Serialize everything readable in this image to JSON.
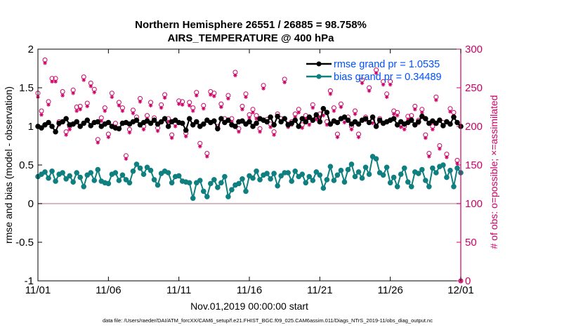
{
  "title_line1": "Northern Hemisphere 26551 / 26885 = 98.758%",
  "title_line2": "AIRS_TEMPERATURE @ 400 hPa",
  "footer": "data file: /Users/raeder/DAI/ATM_forcXX/CAM6_setup/f.e21.FHIST_BGC.f09_025.CAM6assim.011/Diags_NTrS_2019-11/obs_diag_output.nc",
  "colors": {
    "rmse": "#000000",
    "bias": "#0f7f7f",
    "obs": "#cc0066",
    "zero": "#c9a2a8",
    "legend_text": "#0050ff"
  },
  "chart_data": {
    "type": "line",
    "xlabel": "Nov.01,2019 00:00:00 start",
    "ylabel": "rmse and bias (model - observation)",
    "y2label": "# of obs: o=possible; ×=assimilated",
    "x_tick_labels": [
      "11/01",
      "11/06",
      "11/11",
      "11/16",
      "11/21",
      "11/26",
      "12/01"
    ],
    "x_tick_days": [
      0,
      5,
      10,
      15,
      20,
      25,
      30
    ],
    "xlim_days": [
      0,
      30
    ],
    "ylim": [
      -1,
      2
    ],
    "y_ticks": [
      -1,
      -0.5,
      0,
      0.5,
      1,
      1.5,
      2
    ],
    "y_tick_labels": [
      "-1",
      "-0.5",
      "0",
      "0.5",
      "1",
      "1.5",
      "2"
    ],
    "y2lim": [
      0,
      300
    ],
    "y2_ticks": [
      0,
      50,
      100,
      150,
      200,
      250,
      300
    ],
    "y2_tick_labels": [
      "0",
      "50",
      "100",
      "150",
      "200",
      "250",
      "300"
    ],
    "legend_position": "top-right",
    "series": [
      {
        "name": "rmse grand pr = 1.0535",
        "key": "rmse",
        "x_days": [
          0.0,
          0.25,
          0.5,
          0.75,
          1.0,
          1.25,
          1.5,
          1.75,
          2.0,
          2.25,
          2.5,
          2.75,
          3.0,
          3.25,
          3.5,
          3.75,
          4.0,
          4.25,
          4.5,
          4.75,
          5.0,
          5.25,
          5.5,
          5.75,
          6.0,
          6.25,
          6.5,
          6.75,
          7.0,
          7.25,
          7.5,
          7.75,
          8.0,
          8.25,
          8.5,
          8.75,
          9.0,
          9.25,
          9.5,
          9.75,
          10.0,
          10.25,
          10.5,
          10.75,
          11.0,
          11.25,
          11.5,
          11.75,
          12.0,
          12.25,
          12.5,
          12.75,
          13.0,
          13.25,
          13.5,
          13.75,
          14.0,
          14.25,
          14.5,
          14.75,
          15.0,
          15.25,
          15.5,
          15.75,
          16.0,
          16.25,
          16.5,
          16.75,
          17.0,
          17.25,
          17.5,
          17.75,
          18.0,
          18.25,
          18.5,
          18.75,
          19.0,
          19.25,
          19.5,
          19.75,
          20.0,
          20.25,
          20.5,
          20.75,
          21.0,
          21.25,
          21.5,
          21.75,
          22.0,
          22.25,
          22.5,
          22.75,
          23.0,
          23.25,
          23.5,
          23.75,
          24.0,
          24.25,
          24.5,
          24.75,
          25.0,
          25.25,
          25.5,
          25.75,
          26.0,
          26.25,
          26.5,
          26.75,
          27.0,
          27.25,
          27.5,
          27.75,
          28.0,
          28.25,
          28.5,
          28.75,
          29.0,
          29.25,
          29.5,
          29.75,
          30.0
        ],
        "values": [
          1.0,
          0.98,
          1.02,
          1.05,
          1.0,
          0.93,
          1.04,
          1.06,
          1.1,
          1.02,
          1.03,
          1.06,
          1.0,
          1.04,
          1.08,
          1.01,
          1.05,
          1.06,
          1.0,
          1.03,
          1.05,
          1.0,
          0.98,
          0.97,
          1.04,
          1.05,
          1.03,
          1.06,
          1.08,
          1.02,
          1.05,
          1.07,
          1.04,
          1.08,
          1.03,
          1.06,
          1.1,
          1.0,
          1.06,
          1.08,
          1.05,
          1.04,
          0.95,
          1.1,
          1.02,
          1.06,
          1.0,
          1.03,
          1.08,
          1.05,
          1.07,
          0.97,
          1.1,
          1.05,
          1.08,
          1.02,
          1.0,
          1.06,
          1.07,
          1.03,
          1.06,
          1.0,
          1.04,
          1.1,
          1.08,
          1.06,
          1.12,
          1.02,
          1.13,
          1.06,
          1.1,
          1.02,
          1.04,
          1.08,
          1.0,
          1.1,
          1.06,
          1.12,
          1.08,
          1.15,
          1.06,
          1.23,
          1.18,
          1.03,
          1.07,
          1.05,
          1.1,
          1.12,
          1.08,
          1.03,
          1.06,
          1.03,
          1.08,
          1.1,
          1.05,
          1.12,
          1.0,
          1.08,
          1.04,
          1.06,
          1.08,
          1.1,
          1.02,
          1.06,
          1.03,
          1.05,
          1.08,
          1.02,
          1.06,
          1.13,
          1.1,
          1.04,
          1.07,
          1.04,
          1.08,
          1.01,
          1.06,
          1.03,
          1.12,
          1.05,
          1.0
        ]
      },
      {
        "name": "bias grand pr = 0.34489",
        "key": "bias",
        "x_days": [
          0.0,
          0.25,
          0.5,
          0.75,
          1.0,
          1.25,
          1.5,
          1.75,
          2.0,
          2.25,
          2.5,
          2.75,
          3.0,
          3.25,
          3.5,
          3.75,
          4.0,
          4.25,
          4.5,
          4.75,
          5.0,
          5.25,
          5.5,
          5.75,
          6.0,
          6.25,
          6.5,
          6.75,
          7.0,
          7.25,
          7.5,
          7.75,
          8.0,
          8.25,
          8.5,
          8.75,
          9.0,
          9.25,
          9.5,
          9.75,
          10.0,
          10.25,
          10.5,
          10.75,
          11.0,
          11.25,
          11.5,
          11.75,
          12.0,
          12.25,
          12.5,
          12.75,
          13.0,
          13.25,
          13.5,
          13.75,
          14.0,
          14.25,
          14.5,
          14.75,
          15.0,
          15.25,
          15.5,
          15.75,
          16.0,
          16.25,
          16.5,
          16.75,
          17.0,
          17.25,
          17.5,
          17.75,
          18.0,
          18.25,
          18.5,
          18.75,
          19.0,
          19.25,
          19.5,
          19.75,
          20.0,
          20.25,
          20.5,
          20.75,
          21.0,
          21.25,
          21.5,
          21.75,
          22.0,
          22.25,
          22.5,
          22.75,
          23.0,
          23.25,
          23.5,
          23.75,
          24.0,
          24.25,
          24.5,
          24.75,
          25.0,
          25.25,
          25.5,
          25.75,
          26.0,
          26.25,
          26.5,
          26.75,
          27.0,
          27.25,
          27.5,
          27.75,
          28.0,
          28.25,
          28.5,
          28.75,
          29.0,
          29.25,
          29.5,
          29.75,
          30.0
        ],
        "values": [
          0.35,
          0.38,
          0.41,
          0.33,
          0.42,
          0.29,
          0.38,
          0.4,
          0.32,
          0.36,
          0.28,
          0.4,
          0.34,
          0.22,
          0.37,
          0.4,
          0.3,
          0.44,
          0.29,
          0.27,
          0.26,
          0.38,
          0.4,
          0.3,
          0.37,
          0.31,
          0.27,
          0.42,
          0.51,
          0.46,
          0.38,
          0.47,
          0.43,
          0.31,
          0.24,
          0.39,
          0.42,
          0.4,
          0.27,
          0.35,
          0.36,
          0.29,
          0.28,
          0.27,
          0.07,
          0.27,
          0.3,
          0.16,
          0.09,
          0.26,
          0.31,
          0.21,
          0.27,
          0.35,
          0.09,
          0.18,
          0.24,
          0.26,
          0.32,
          0.16,
          0.36,
          0.33,
          0.42,
          0.31,
          0.37,
          0.39,
          0.32,
          0.39,
          0.23,
          0.36,
          0.4,
          0.4,
          0.29,
          0.42,
          0.35,
          0.38,
          0.27,
          0.35,
          0.3,
          0.41,
          0.37,
          0.2,
          0.31,
          0.48,
          0.3,
          0.37,
          0.43,
          0.28,
          0.44,
          0.51,
          0.35,
          0.41,
          0.33,
          0.47,
          0.38,
          0.61,
          0.58,
          0.4,
          0.37,
          0.47,
          0.27,
          0.34,
          0.22,
          0.38,
          0.46,
          0.28,
          0.22,
          0.41,
          0.39,
          0.44,
          0.3,
          0.22,
          0.46,
          0.4,
          0.48,
          0.5,
          0.34,
          0.43,
          0.22,
          0.46,
          0.4
        ]
      },
      {
        "name": "observations possible",
        "key": "obs_possible",
        "marker": "o",
        "x_days": [
          0.0,
          0.25,
          0.5,
          0.75,
          1.0,
          1.25,
          1.5,
          1.75,
          2.0,
          2.25,
          2.5,
          2.75,
          3.0,
          3.25,
          3.5,
          3.75,
          4.0,
          4.25,
          4.5,
          4.75,
          5.0,
          5.25,
          5.5,
          5.75,
          6.0,
          6.25,
          6.5,
          6.75,
          7.0,
          7.25,
          7.5,
          7.75,
          8.0,
          8.25,
          8.5,
          8.75,
          9.0,
          9.25,
          9.5,
          9.75,
          10.0,
          10.25,
          10.5,
          10.75,
          11.0,
          11.25,
          11.5,
          11.75,
          12.0,
          12.25,
          12.5,
          12.75,
          13.0,
          13.25,
          13.5,
          13.75,
          14.0,
          14.25,
          14.5,
          14.75,
          15.0,
          15.25,
          15.5,
          15.75,
          16.0,
          16.25,
          16.5,
          16.75,
          17.0,
          17.25,
          17.5,
          17.75,
          18.0,
          18.25,
          18.5,
          18.75,
          19.0,
          19.25,
          19.5,
          19.75,
          20.0,
          20.25,
          20.5,
          20.75,
          21.0,
          21.25,
          21.5,
          21.75,
          22.0,
          22.25,
          22.5,
          22.75,
          23.0,
          23.25,
          23.5,
          23.75,
          24.0,
          24.25,
          24.5,
          24.75,
          25.0,
          25.25,
          25.5,
          25.75,
          26.0,
          26.25,
          26.5,
          26.75,
          27.0,
          27.25,
          27.5,
          27.75,
          28.0,
          28.25,
          28.5,
          28.75,
          29.0,
          29.25,
          29.5,
          29.75,
          30.0
        ],
        "values": [
          243,
          220,
          286,
          232,
          262,
          262,
          206,
          245,
          193,
          200,
          247,
          225,
          226,
          264,
          230,
          256,
          248,
          183,
          211,
          224,
          190,
          243,
          204,
          231,
          224,
          162,
          196,
          221,
          212,
          236,
          200,
          214,
          231,
          211,
          198,
          228,
          241,
          210,
          189,
          204,
          233,
          232,
          191,
          231,
          224,
          244,
          178,
          227,
          165,
          245,
          243,
          200,
          229,
          210,
          240,
          210,
          270,
          197,
          226,
          242,
          215,
          222,
          214,
          197,
          253,
          209,
          203,
          193,
          216,
          210,
          261,
          203,
          206,
          216,
          222,
          202,
          214,
          206,
          228,
          213,
          216,
          218,
          206,
          246,
          224,
          190,
          229,
          209,
          212,
          200,
          220,
          190,
          260,
          212,
          250,
          208,
          273,
          210,
          258,
          242,
          258,
          220,
          218,
          203,
          200,
          213,
          214,
          226,
          208,
          222,
          189,
          165,
          200,
          238,
          175,
          205,
          164,
          223,
          218,
          156,
          0
        ]
      },
      {
        "name": "observations assimilated",
        "key": "obs_assimilated",
        "marker": "*",
        "x_days": [
          0.0,
          0.25,
          0.5,
          0.75,
          1.0,
          1.25,
          1.5,
          1.75,
          2.0,
          2.25,
          2.5,
          2.75,
          3.0,
          3.25,
          3.5,
          3.75,
          4.0,
          4.25,
          4.5,
          4.75,
          5.0,
          5.25,
          5.5,
          5.75,
          6.0,
          6.25,
          6.5,
          6.75,
          7.0,
          7.25,
          7.5,
          7.75,
          8.0,
          8.25,
          8.5,
          8.75,
          9.0,
          9.25,
          9.5,
          9.75,
          10.0,
          10.25,
          10.5,
          10.75,
          11.0,
          11.25,
          11.5,
          11.75,
          12.0,
          12.25,
          12.5,
          12.75,
          13.0,
          13.25,
          13.5,
          13.75,
          14.0,
          14.25,
          14.5,
          14.75,
          15.0,
          15.25,
          15.5,
          15.75,
          16.0,
          16.25,
          16.5,
          16.75,
          17.0,
          17.25,
          17.5,
          17.75,
          18.0,
          18.25,
          18.5,
          18.75,
          19.0,
          19.25,
          19.5,
          19.75,
          20.0,
          20.25,
          20.5,
          20.75,
          21.0,
          21.25,
          21.5,
          21.75,
          22.0,
          22.25,
          22.5,
          22.75,
          23.0,
          23.25,
          23.5,
          23.75,
          24.0,
          24.25,
          24.5,
          24.75,
          25.0,
          25.25,
          25.5,
          25.75,
          26.0,
          26.25,
          26.5,
          26.75,
          27.0,
          27.25,
          27.5,
          27.75,
          28.0,
          28.25,
          28.5,
          28.75,
          29.0,
          29.25,
          29.5,
          29.75,
          30.0
        ],
        "values": [
          238,
          215,
          282,
          228,
          258,
          258,
          202,
          240,
          189,
          196,
          243,
          220,
          222,
          260,
          226,
          252,
          244,
          179,
          207,
          220,
          186,
          238,
          200,
          227,
          220,
          158,
          192,
          217,
          208,
          232,
          196,
          210,
          227,
          207,
          194,
          224,
          237,
          206,
          185,
          200,
          229,
          228,
          187,
          227,
          220,
          240,
          174,
          223,
          161,
          241,
          239,
          196,
          225,
          206,
          236,
          206,
          266,
          193,
          222,
          238,
          211,
          218,
          210,
          193,
          249,
          205,
          199,
          189,
          212,
          206,
          257,
          199,
          202,
          212,
          218,
          198,
          210,
          202,
          224,
          209,
          212,
          214,
          202,
          242,
          220,
          186,
          225,
          205,
          208,
          196,
          216,
          186,
          256,
          208,
          246,
          204,
          269,
          206,
          254,
          238,
          254,
          216,
          214,
          199,
          196,
          209,
          210,
          222,
          204,
          218,
          185,
          161,
          196,
          234,
          171,
          201,
          160,
          219,
          214,
          152,
          0
        ]
      }
    ]
  }
}
